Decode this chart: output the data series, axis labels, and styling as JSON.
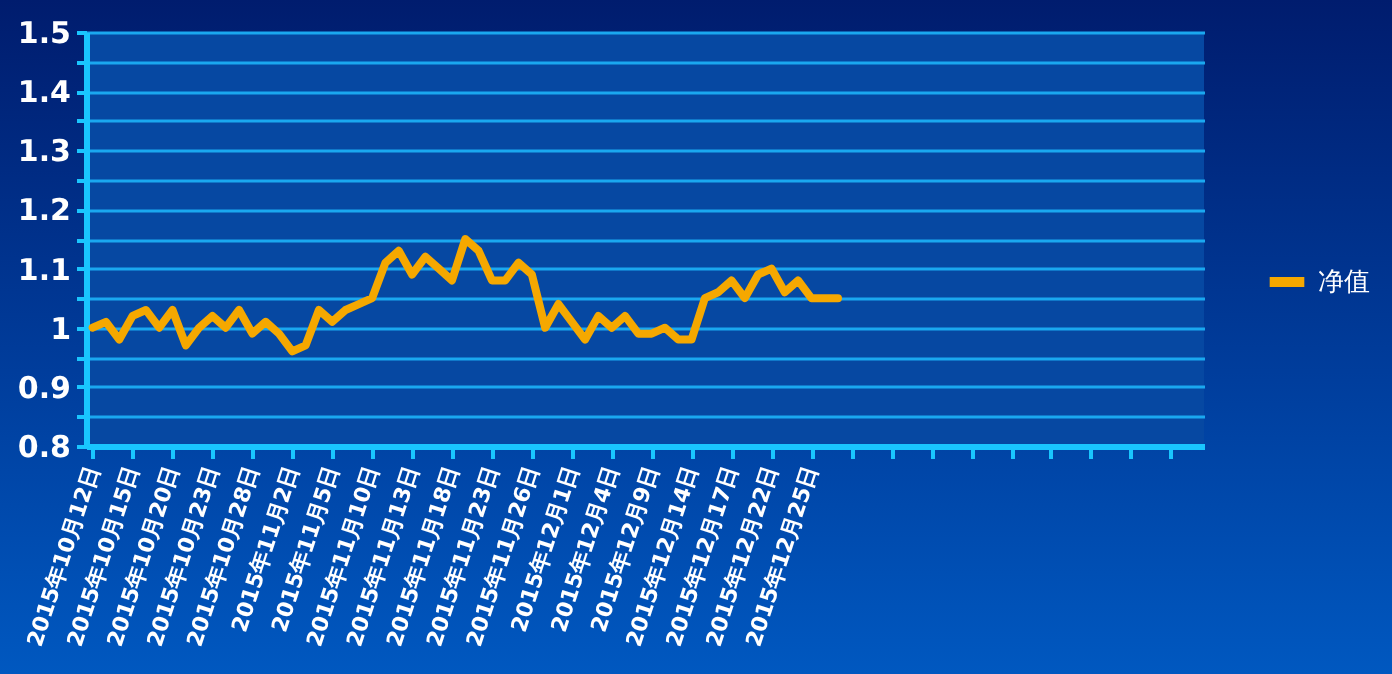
{
  "chart_data": {
    "type": "line",
    "categories": [
      "2015年10月12日",
      null,
      null,
      "2015年10月15日",
      null,
      null,
      "2015年10月20日",
      null,
      null,
      "2015年10月23日",
      null,
      null,
      "2015年10月28日",
      null,
      null,
      "2015年11月2日",
      null,
      null,
      "2015年11月5日",
      null,
      null,
      "2015年11月10日",
      null,
      null,
      "2015年11月13日",
      null,
      null,
      "2015年11月18日",
      null,
      null,
      "2015年11月23日",
      null,
      null,
      "2015年11月26日",
      null,
      null,
      "2015年12月1日",
      null,
      null,
      "2015年12月4日",
      null,
      null,
      "2015年12月9日",
      null,
      null,
      "2015年12月14日",
      null,
      null,
      "2015年12月17日",
      null,
      null,
      "2015年12月22日",
      null,
      null,
      "2015年12月25日",
      null,
      null,
      null,
      null,
      null,
      null,
      null,
      null,
      null,
      null,
      null,
      null,
      null,
      null,
      null,
      null,
      null,
      null,
      null,
      null,
      null,
      null,
      null,
      null,
      null,
      null,
      null,
      null,
      null
    ],
    "series": [
      {
        "name": "净值",
        "color": "#f5a800",
        "values": [
          1.0,
          1.01,
          0.98,
          1.02,
          1.03,
          1.0,
          1.03,
          0.97,
          1.0,
          1.02,
          1.0,
          1.03,
          0.99,
          1.01,
          0.99,
          0.96,
          0.97,
          1.03,
          1.01,
          1.03,
          1.04,
          1.05,
          1.11,
          1.13,
          1.09,
          1.12,
          1.1,
          1.08,
          1.15,
          1.13,
          1.08,
          1.08,
          1.11,
          1.09,
          1.0,
          1.04,
          1.01,
          0.98,
          1.02,
          1.0,
          1.02,
          0.99,
          0.99,
          1.0,
          0.98,
          0.98,
          1.05,
          1.06,
          1.08,
          1.05,
          1.09,
          1.1,
          1.06,
          1.08,
          1.05,
          1.05,
          1.05,
          null,
          null,
          null,
          null,
          null,
          null,
          null,
          null,
          null,
          null,
          null,
          null,
          null,
          null,
          null,
          null,
          null,
          null,
          null,
          null,
          null,
          null,
          null,
          null,
          null,
          null,
          null
        ]
      }
    ],
    "ylim": [
      0.8,
      1.5
    ],
    "yticks": [
      0.8,
      {
        "value": 0.85,
        "label": null
      },
      0.9,
      {
        "value": 0.95,
        "label": null
      },
      1,
      {
        "value": 1.05,
        "label": null
      },
      1.1,
      {
        "value": 1.15,
        "label": null
      },
      1.2,
      {
        "value": 1.25,
        "label": null
      },
      1.3,
      {
        "value": 1.35,
        "label": null
      },
      1.4,
      {
        "value": 1.45,
        "label": null
      },
      1.5
    ],
    "grid": "y",
    "legend": "right",
    "marker": "none",
    "line_style": "solid"
  }
}
